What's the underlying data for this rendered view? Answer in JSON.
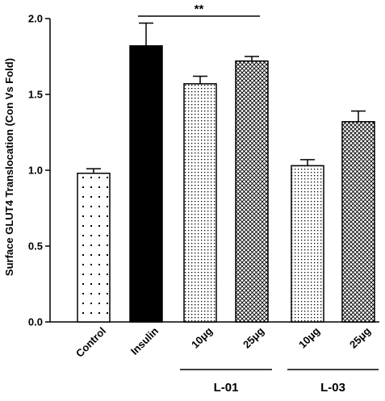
{
  "chart_data": {
    "type": "bar",
    "ylabel": "Surface GLUT4 Translocation (Con Vs Fold)",
    "ylim": [
      0,
      2.0
    ],
    "yticks": [
      "0.0",
      "0.5",
      "1.0",
      "1.5",
      "2.0"
    ],
    "categories": [
      "Control",
      "Insulin",
      "10μg",
      "25μg",
      "10μg",
      "25μg"
    ],
    "values": [
      0.98,
      1.82,
      1.57,
      1.72,
      1.03,
      1.32
    ],
    "errors": [
      0.03,
      0.15,
      0.05,
      0.03,
      0.04,
      0.07
    ],
    "patterns": [
      "dots-sparse",
      "solid",
      "dots-dense",
      "crosshatch",
      "dots-dense",
      "crosshatch"
    ],
    "groups": [
      {
        "label": "L-01",
        "bars": [
          2,
          3
        ]
      },
      {
        "label": "L-03",
        "bars": [
          4,
          5
        ]
      }
    ],
    "significance": {
      "label": "**",
      "from": 1,
      "to": 3
    },
    "colors": {
      "bar_stroke": "#000000",
      "solid_fill": "#000000",
      "background": "#ffffff"
    }
  }
}
